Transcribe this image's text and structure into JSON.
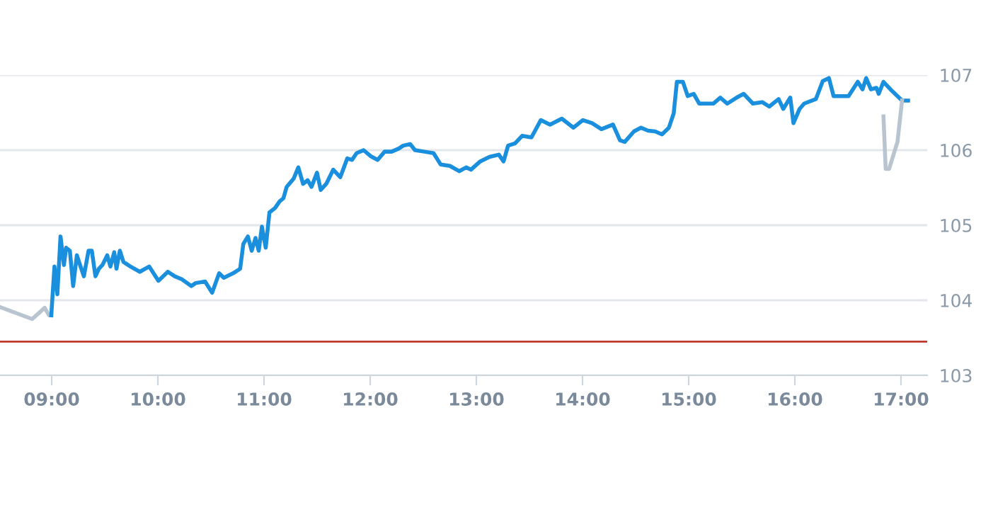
{
  "chart_data": {
    "type": "line",
    "series": [
      {
        "color": "#b8c4d0",
        "x": [
          8.513,
          8.816,
          8.934,
          8.974,
          8.996
        ],
        "values": [
          103.91,
          103.75,
          103.9,
          103.8,
          103.8
        ]
      },
      {
        "color": "#1a8fdd",
        "x": [
          8.996,
          9.026,
          9.053,
          9.083,
          9.115,
          9.136,
          9.171,
          9.202,
          9.237,
          9.267,
          9.303,
          9.347,
          9.378,
          9.412,
          9.444,
          9.478,
          9.523,
          9.553,
          9.589,
          9.61,
          9.642,
          9.676,
          9.742,
          9.83,
          9.918,
          10.005,
          10.094,
          10.159,
          10.225,
          10.314,
          10.357,
          10.445,
          10.511,
          10.577,
          10.621,
          10.709,
          10.775,
          10.805,
          10.848,
          10.884,
          10.92,
          10.95,
          10.98,
          11.016,
          11.051,
          11.104,
          11.148,
          11.183,
          11.213,
          11.279,
          11.323,
          11.368,
          11.411,
          11.447,
          11.499,
          11.534,
          11.586,
          11.631,
          11.652,
          11.718,
          11.784,
          11.829,
          11.872,
          11.938,
          12.004,
          12.07,
          12.136,
          12.202,
          12.268,
          12.311,
          12.377,
          12.422,
          12.509,
          12.597,
          12.663,
          12.751,
          12.838,
          12.904,
          12.949,
          13.036,
          13.124,
          13.212,
          13.256,
          13.299,
          13.365,
          13.431,
          13.519,
          13.607,
          13.694,
          13.805,
          13.914,
          14.003,
          14.09,
          14.178,
          14.287,
          14.353,
          14.398,
          14.485,
          14.551,
          14.617,
          14.683,
          14.749,
          14.814,
          14.859,
          14.889,
          14.946,
          14.991,
          15.047,
          15.1,
          15.166,
          15.232,
          15.298,
          15.364,
          15.452,
          15.518,
          15.605,
          15.693,
          15.759,
          15.847,
          15.891,
          15.957,
          15.987,
          16.045,
          16.088,
          16.198,
          16.263,
          16.321,
          16.365,
          16.506,
          16.593,
          16.638,
          16.672,
          16.717,
          16.769,
          16.79,
          16.835,
          16.901,
          17.01,
          17.067
        ],
        "values": [
          103.8,
          104.45,
          104.08,
          104.85,
          104.47,
          104.7,
          104.66,
          104.19,
          104.6,
          104.47,
          104.32,
          104.66,
          104.66,
          104.32,
          104.42,
          104.47,
          104.6,
          104.45,
          104.64,
          104.42,
          104.66,
          104.51,
          104.45,
          104.38,
          104.45,
          104.26,
          104.38,
          104.32,
          104.28,
          104.19,
          104.23,
          104.25,
          104.1,
          104.36,
          104.3,
          104.36,
          104.42,
          104.75,
          104.85,
          104.66,
          104.83,
          104.66,
          104.98,
          104.7,
          105.17,
          105.23,
          105.32,
          105.36,
          105.51,
          105.62,
          105.77,
          105.55,
          105.6,
          105.51,
          105.7,
          105.47,
          105.55,
          105.68,
          105.74,
          105.64,
          105.89,
          105.87,
          105.96,
          106.0,
          105.92,
          105.87,
          105.98,
          105.98,
          106.02,
          106.06,
          106.08,
          106.0,
          105.98,
          105.96,
          105.81,
          105.79,
          105.72,
          105.77,
          105.74,
          105.85,
          105.91,
          105.94,
          105.85,
          106.06,
          106.09,
          106.19,
          106.17,
          106.4,
          106.34,
          106.42,
          106.3,
          106.4,
          106.36,
          106.28,
          106.34,
          106.13,
          106.11,
          106.25,
          106.3,
          106.26,
          106.25,
          106.21,
          106.3,
          106.49,
          106.91,
          106.91,
          106.72,
          106.75,
          106.62,
          106.62,
          106.62,
          106.7,
          106.62,
          106.7,
          106.75,
          106.62,
          106.64,
          106.58,
          106.68,
          106.55,
          106.7,
          106.36,
          106.55,
          106.62,
          106.68,
          106.92,
          106.96,
          106.72,
          106.72,
          106.91,
          106.81,
          106.96,
          106.81,
          106.83,
          106.75,
          106.91,
          106.81,
          106.66,
          106.66
        ]
      },
      {
        "color": "#b8c4d0",
        "x": [
          16.835,
          16.856,
          16.888,
          16.967,
          17.01
        ],
        "values": [
          106.45,
          105.75,
          105.75,
          106.11,
          106.66
        ]
      }
    ],
    "xlim": [
      8.513,
      17.247
    ],
    "xticks": [
      {
        "value": 9,
        "label": "09:00"
      },
      {
        "value": 10,
        "label": "10:00"
      },
      {
        "value": 11,
        "label": "11:00"
      },
      {
        "value": 12,
        "label": "12:00"
      },
      {
        "value": 13,
        "label": "13:00"
      },
      {
        "value": 14,
        "label": "14:00"
      },
      {
        "value": 15,
        "label": "15:00"
      },
      {
        "value": 16,
        "label": "16:00"
      },
      {
        "value": 17,
        "label": "17:00"
      }
    ],
    "ylim": [
      103,
      107
    ],
    "yticks": [
      103,
      104,
      105,
      106,
      107
    ],
    "ref_lines": [
      {
        "axis": "y",
        "value": 103.45,
        "color": "#c0392b"
      }
    ],
    "grid": "y",
    "marker": "none",
    "line_style": "solid"
  }
}
